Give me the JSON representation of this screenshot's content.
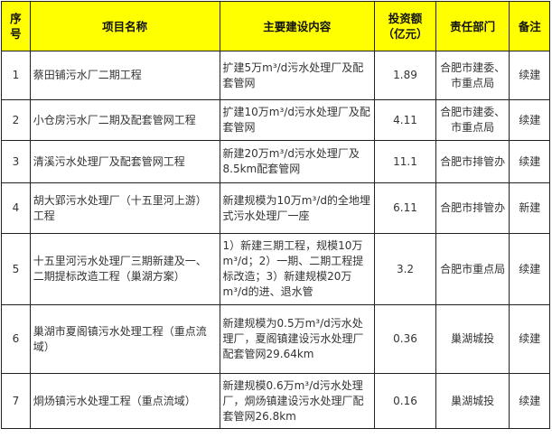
{
  "headers": [
    "序号",
    "项目名称",
    "主要建设内容",
    "投资额\n（亿元）",
    "责任部门",
    "备注"
  ],
  "rows": [
    {
      "no": "1",
      "name": "蔡田铺污水厂二期工程",
      "content": "扩建5万m³/d污水处理厂及配套管网",
      "investment": "1.89",
      "dept": "合肥市建委、市重点局",
      "note": "续建"
    },
    {
      "no": "2",
      "name": "小仓房污水厂二期及配套管网工程",
      "content": "扩建10万m³/d污水处理厂及配套管网",
      "investment": "4.11",
      "dept": "合肥市建委、市重点局",
      "note": "续建"
    },
    {
      "no": "3",
      "name": "清溪污水处理厂及配套管网工程",
      "content": "新建20万m³/d污水处理厂及8.5km配套管网",
      "investment": "11.1",
      "dept": "合肥市排管办",
      "note": "续建"
    },
    {
      "no": "4",
      "name": "胡大郢污水处理厂（十五里河上游）工程",
      "content": "新建规模为10万m³/d的全地埋式污水处理厂一座",
      "investment": "6.11",
      "dept": "合肥市排管办",
      "note": "新建"
    },
    {
      "no": "5",
      "name": "十五里河污水处理厂三期新建及一、二期提标改造工程（巢湖方案）",
      "content": "1）新建三期工程，规模10万m³/d；2）一期、二期工程提标改造；3）新建规模20万m³/d的进、退水管",
      "investment": "3.2",
      "dept": "合肥市重点局",
      "note": "续建"
    },
    {
      "no": "6",
      "name": "巢湖市夏阁镇污水处理工程（重点流域）",
      "content": "新建规模为0.5万m³/d污水处理厂，夏阁镇建设污水处理厂配套管网29.64km",
      "investment": "0.36",
      "dept": "巢湖城投",
      "note": "续建"
    },
    {
      "no": "7",
      "name": "烔炀镇污水处理工程（重点流域）",
      "content": "新建规模0.6万m³/d污水处理厂，烔炀镇建设污水处理厂配套管网26.8km",
      "investment": "0.16",
      "dept": "巢湖城投",
      "note": "续建"
    }
  ]
}
